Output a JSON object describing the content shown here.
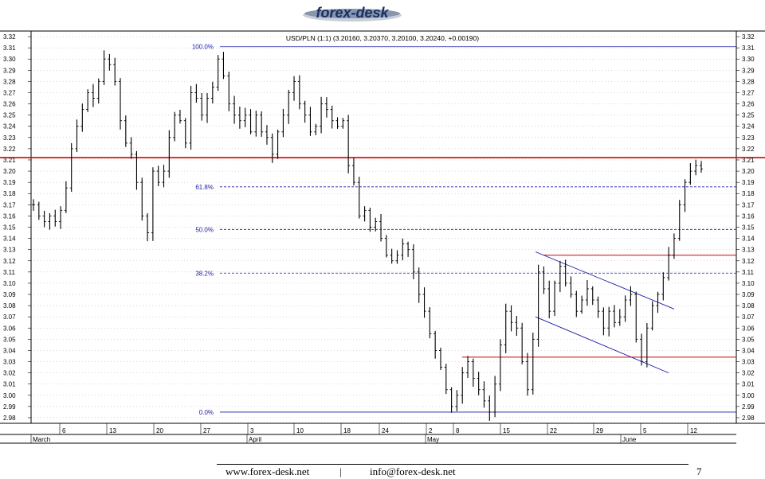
{
  "logo": {
    "text": "forex-desk"
  },
  "footer": {
    "website": "www.forex-desk.net",
    "separator": "|",
    "email": "info@forex-desk.net",
    "page_number": "7"
  },
  "colors": {
    "price": "#000000",
    "support_resistance": "#d40000",
    "fibonacci": "#1a1aa8",
    "channel": "#1a1aa8",
    "grid": "#b0b0b0"
  },
  "chart_data": {
    "type": "line",
    "title": "USD/PLN (1:1) (3.20160, 3.20370, 3.20100, 3.20240, +0.00190)",
    "ylim": [
      2.975,
      3.325
    ],
    "y_ticks": [
      "3.32",
      "3.31",
      "3.30",
      "3.29",
      "3.28",
      "3.27",
      "3.26",
      "3.25",
      "3.24",
      "3.23",
      "3.22",
      "3.21",
      "3.20",
      "3.19",
      "3.18",
      "3.17",
      "3.16",
      "3.15",
      "3.14",
      "3.13",
      "3.12",
      "3.11",
      "3.10",
      "3.09",
      "3.08",
      "3.07",
      "3.06",
      "3.05",
      "3.04",
      "3.03",
      "3.02",
      "3.01",
      "3.00",
      "2.99",
      "2.98"
    ],
    "x_day_labels": [
      "6",
      "13",
      "20",
      "27",
      "3",
      "10",
      "18",
      "24",
      "2",
      "8",
      "15",
      "22",
      "29",
      "5",
      "12"
    ],
    "x_month_labels": [
      "March",
      "April",
      "May",
      "June"
    ],
    "series": [
      {
        "values": [
          3.17,
          3.16,
          3.155,
          3.16,
          3.155,
          3.165,
          3.185,
          3.22,
          3.24,
          3.255,
          3.27,
          3.265,
          3.28,
          3.3,
          3.295,
          3.28,
          3.245,
          3.225,
          3.215,
          3.19,
          3.16,
          3.145,
          3.2,
          3.19,
          3.2,
          3.23,
          3.25,
          3.245,
          3.225,
          3.27,
          3.265,
          3.25,
          3.265,
          3.275,
          3.3,
          3.285,
          3.26,
          3.25,
          3.245,
          3.25,
          3.235,
          3.25,
          3.235,
          3.23,
          3.215,
          3.235,
          3.25,
          3.27,
          3.28,
          3.26,
          3.25,
          3.235,
          3.24,
          3.26,
          3.255,
          3.245,
          3.24,
          3.245,
          3.205,
          3.19,
          3.16,
          3.165,
          3.15,
          3.155,
          3.14,
          3.125,
          3.12,
          3.125,
          3.135,
          3.13,
          3.11,
          3.09,
          3.075,
          3.055,
          3.04,
          3.025,
          3.005,
          2.99,
          3.0,
          3.02,
          3.03,
          3.015,
          3.005,
          2.995,
          2.985,
          3.01,
          3.045,
          3.075,
          3.065,
          3.06,
          3.03,
          3.005,
          3.05,
          3.11,
          3.095,
          3.075,
          3.1,
          3.115,
          3.1,
          3.09,
          3.075,
          3.085,
          3.095,
          3.085,
          3.075,
          3.06,
          3.075,
          3.065,
          3.07,
          3.085,
          3.09,
          3.05,
          3.03,
          3.06,
          3.08,
          3.09,
          3.105,
          3.125,
          3.14,
          3.17,
          3.19,
          3.2,
          3.205,
          3.202
        ]
      }
    ],
    "horizontal_levels": [
      {
        "value": 3.212,
        "label": ""
      },
      {
        "value": 3.125,
        "label": ""
      },
      {
        "value": 3.034,
        "label": ""
      }
    ],
    "fibonacci_levels": [
      {
        "label": "100.0%",
        "value": 3.311
      },
      {
        "label": "61.8%",
        "value": 3.186
      },
      {
        "label": "50.0%",
        "value": 3.148
      },
      {
        "label": "38.2%",
        "value": 3.109
      },
      {
        "label": "0.0%",
        "value": 2.985
      }
    ],
    "channel_lines": [
      {
        "from": {
          "i": 96,
          "y": 3.128
        },
        "to": {
          "i": 118,
          "y": 3.077
        }
      },
      {
        "from": {
          "i": 96,
          "y": 3.07
        },
        "to": {
          "i": 117,
          "y": 3.02
        }
      }
    ],
    "grid": true,
    "legend": "none"
  }
}
